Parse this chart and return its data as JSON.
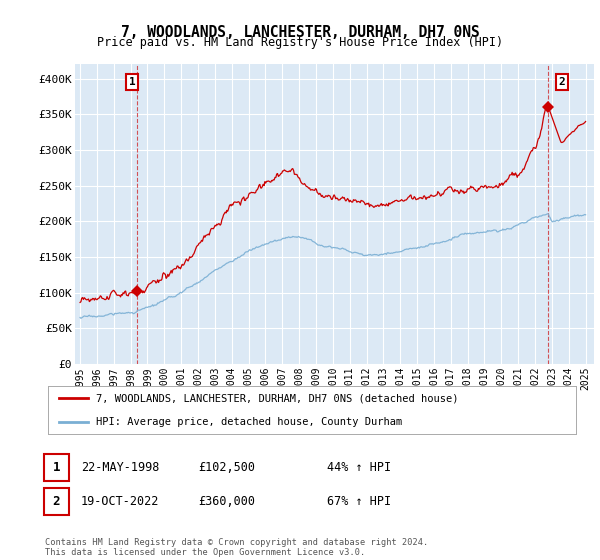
{
  "title": "7, WOODLANDS, LANCHESTER, DURHAM, DH7 0NS",
  "subtitle": "Price paid vs. HM Land Registry's House Price Index (HPI)",
  "legend_line1": "7, WOODLANDS, LANCHESTER, DURHAM, DH7 0NS (detached house)",
  "legend_line2": "HPI: Average price, detached house, County Durham",
  "sale1_date": "22-MAY-1998",
  "sale1_price": 102500,
  "sale1_pct": "44% ↑ HPI",
  "sale1_year": 1998.38,
  "sale2_date": "19-OCT-2022",
  "sale2_price": 360000,
  "sale2_pct": "67% ↑ HPI",
  "sale2_year": 2022.79,
  "footer": "Contains HM Land Registry data © Crown copyright and database right 2024.\nThis data is licensed under the Open Government Licence v3.0.",
  "red_color": "#cc0000",
  "blue_color": "#7aafd4",
  "plot_bg": "#dce9f5",
  "ylim": [
    0,
    420000
  ],
  "xlim": [
    1994.7,
    2025.5
  ],
  "yticks": [
    0,
    50000,
    100000,
    150000,
    200000,
    250000,
    300000,
    350000,
    400000
  ],
  "ytick_labels": [
    "£0",
    "£50K",
    "£100K",
    "£150K",
    "£200K",
    "£250K",
    "£300K",
    "£350K",
    "£400K"
  ],
  "xticks": [
    1995,
    1996,
    1997,
    1998,
    1999,
    2000,
    2001,
    2002,
    2003,
    2004,
    2005,
    2006,
    2007,
    2008,
    2009,
    2010,
    2011,
    2012,
    2013,
    2014,
    2015,
    2016,
    2017,
    2018,
    2019,
    2020,
    2021,
    2022,
    2023,
    2024,
    2025
  ]
}
